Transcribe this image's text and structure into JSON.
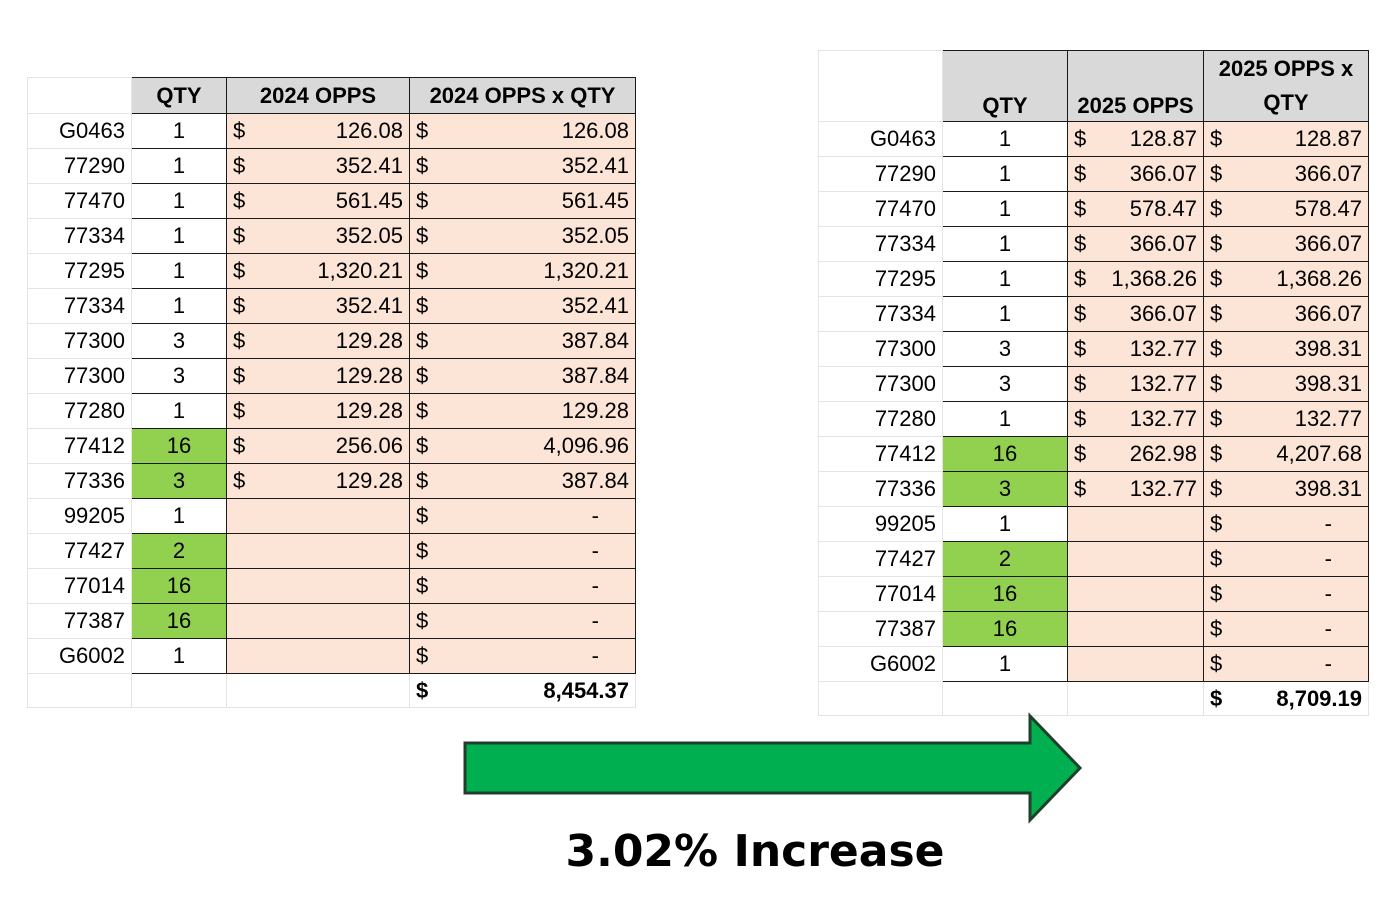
{
  "table_2024": {
    "headers": {
      "qty": "QTY",
      "opps": "2024 OPPS",
      "total": "2024 OPPS x QTY"
    },
    "rows": [
      {
        "code": "G0463",
        "qty": "1",
        "highlight": false,
        "opps": "126.08",
        "total": "126.08"
      },
      {
        "code": "77290",
        "qty": "1",
        "highlight": false,
        "opps": "352.41",
        "total": "352.41"
      },
      {
        "code": "77470",
        "qty": "1",
        "highlight": false,
        "opps": "561.45",
        "total": "561.45"
      },
      {
        "code": "77334",
        "qty": "1",
        "highlight": false,
        "opps": "352.05",
        "total": "352.05"
      },
      {
        "code": "77295",
        "qty": "1",
        "highlight": false,
        "opps": "1,320.21",
        "total": "1,320.21"
      },
      {
        "code": "77334",
        "qty": "1",
        "highlight": false,
        "opps": "352.41",
        "total": "352.41"
      },
      {
        "code": "77300",
        "qty": "3",
        "highlight": false,
        "opps": "129.28",
        "total": "387.84"
      },
      {
        "code": "77300",
        "qty": "3",
        "highlight": false,
        "opps": "129.28",
        "total": "387.84"
      },
      {
        "code": "77280",
        "qty": "1",
        "highlight": false,
        "opps": "129.28",
        "total": "129.28"
      },
      {
        "code": "77412",
        "qty": "16",
        "highlight": true,
        "opps": "256.06",
        "total": "4,096.96"
      },
      {
        "code": "77336",
        "qty": "3",
        "highlight": true,
        "opps": "129.28",
        "total": "387.84"
      },
      {
        "code": "99205",
        "qty": "1",
        "highlight": false,
        "opps": "",
        "total": "-"
      },
      {
        "code": "77427",
        "qty": "2",
        "highlight": true,
        "opps": "",
        "total": "-"
      },
      {
        "code": "77014",
        "qty": "16",
        "highlight": true,
        "opps": "",
        "total": "-"
      },
      {
        "code": "77387",
        "qty": "16",
        "highlight": true,
        "opps": "",
        "total": "-"
      },
      {
        "code": "G6002",
        "qty": "1",
        "highlight": false,
        "opps": "",
        "total": "-"
      }
    ],
    "grand_total": "8,454.37"
  },
  "table_2025": {
    "headers": {
      "qty": "QTY",
      "opps": "2025 OPPS",
      "total_line1": "2025 OPPS x",
      "total_line2": "QTY"
    },
    "rows": [
      {
        "code": "G0463",
        "qty": "1",
        "highlight": false,
        "opps": "128.87",
        "total": "128.87"
      },
      {
        "code": "77290",
        "qty": "1",
        "highlight": false,
        "opps": "366.07",
        "total": "366.07"
      },
      {
        "code": "77470",
        "qty": "1",
        "highlight": false,
        "opps": "578.47",
        "total": "578.47"
      },
      {
        "code": "77334",
        "qty": "1",
        "highlight": false,
        "opps": "366.07",
        "total": "366.07"
      },
      {
        "code": "77295",
        "qty": "1",
        "highlight": false,
        "opps": "1,368.26",
        "total": "1,368.26"
      },
      {
        "code": "77334",
        "qty": "1",
        "highlight": false,
        "opps": "366.07",
        "total": "366.07"
      },
      {
        "code": "77300",
        "qty": "3",
        "highlight": false,
        "opps": "132.77",
        "total": "398.31"
      },
      {
        "code": "77300",
        "qty": "3",
        "highlight": false,
        "opps": "132.77",
        "total": "398.31"
      },
      {
        "code": "77280",
        "qty": "1",
        "highlight": false,
        "opps": "132.77",
        "total": "132.77"
      },
      {
        "code": "77412",
        "qty": "16",
        "highlight": true,
        "opps": "262.98",
        "total": "4,207.68"
      },
      {
        "code": "77336",
        "qty": "3",
        "highlight": true,
        "opps": "132.77",
        "total": "398.31"
      },
      {
        "code": "99205",
        "qty": "1",
        "highlight": false,
        "opps": "",
        "total": "-"
      },
      {
        "code": "77427",
        "qty": "2",
        "highlight": true,
        "opps": "",
        "total": "-"
      },
      {
        "code": "77014",
        "qty": "16",
        "highlight": true,
        "opps": "",
        "total": "-"
      },
      {
        "code": "77387",
        "qty": "16",
        "highlight": true,
        "opps": "",
        "total": "-"
      },
      {
        "code": "G6002",
        "qty": "1",
        "highlight": false,
        "opps": "",
        "total": "-"
      }
    ],
    "grand_total": "8,709.19"
  },
  "currency_symbol": "$",
  "arrow": {
    "icon": "right-arrow-icon",
    "fill": "#00b050",
    "stroke": "#1f3f2a"
  },
  "caption": "3.02% Increase",
  "colors": {
    "qty_highlight": "#92d050",
    "value_fill": "#fce4d6",
    "header_fill": "#d9d9d9"
  }
}
